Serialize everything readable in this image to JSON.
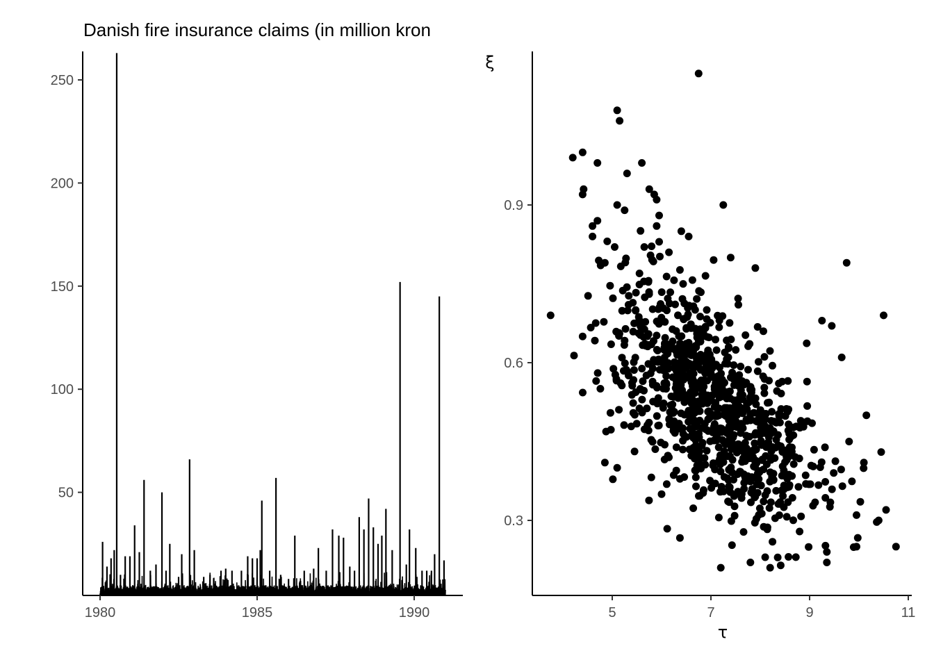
{
  "chart_data": [
    {
      "type": "line",
      "title": "Danish fire insurance claims (in million kron",
      "xlabel": "",
      "ylabel": "",
      "xlim": [
        1979.9,
        1991.6
      ],
      "ylim": [
        0,
        262
      ],
      "x_ticks": [
        "1980",
        "1985",
        "1990"
      ],
      "x_tick_values": [
        1980,
        1985,
        1990
      ],
      "y_ticks": [
        "50",
        "100",
        "150",
        "200",
        "250"
      ],
      "y_tick_values": [
        50,
        100,
        150,
        200,
        250
      ],
      "grid": false,
      "peaks": [
        {
          "x": 1980.08,
          "y": 26
        },
        {
          "x": 1980.22,
          "y": 14
        },
        {
          "x": 1980.35,
          "y": 18
        },
        {
          "x": 1980.45,
          "y": 22
        },
        {
          "x": 1980.53,
          "y": 263
        },
        {
          "x": 1980.65,
          "y": 10
        },
        {
          "x": 1980.8,
          "y": 19
        },
        {
          "x": 1980.95,
          "y": 19
        },
        {
          "x": 1981.1,
          "y": 34
        },
        {
          "x": 1981.25,
          "y": 21
        },
        {
          "x": 1981.4,
          "y": 56
        },
        {
          "x": 1981.6,
          "y": 12
        },
        {
          "x": 1981.78,
          "y": 15
        },
        {
          "x": 1981.97,
          "y": 50
        },
        {
          "x": 1982.1,
          "y": 12
        },
        {
          "x": 1982.22,
          "y": 25
        },
        {
          "x": 1982.5,
          "y": 9
        },
        {
          "x": 1982.6,
          "y": 20
        },
        {
          "x": 1982.85,
          "y": 66
        },
        {
          "x": 1983.0,
          "y": 22
        },
        {
          "x": 1983.3,
          "y": 9
        },
        {
          "x": 1983.5,
          "y": 10
        },
        {
          "x": 1983.85,
          "y": 12
        },
        {
          "x": 1984.0,
          "y": 13
        },
        {
          "x": 1984.2,
          "y": 12
        },
        {
          "x": 1984.5,
          "y": 12
        },
        {
          "x": 1984.7,
          "y": 19
        },
        {
          "x": 1984.85,
          "y": 18
        },
        {
          "x": 1985.0,
          "y": 18
        },
        {
          "x": 1985.1,
          "y": 22
        },
        {
          "x": 1985.15,
          "y": 46
        },
        {
          "x": 1985.4,
          "y": 12
        },
        {
          "x": 1985.6,
          "y": 57
        },
        {
          "x": 1985.75,
          "y": 10
        },
        {
          "x": 1986.0,
          "y": 8
        },
        {
          "x": 1986.2,
          "y": 29
        },
        {
          "x": 1986.5,
          "y": 12
        },
        {
          "x": 1986.8,
          "y": 13
        },
        {
          "x": 1986.95,
          "y": 23
        },
        {
          "x": 1987.2,
          "y": 12
        },
        {
          "x": 1987.4,
          "y": 32
        },
        {
          "x": 1987.6,
          "y": 29
        },
        {
          "x": 1987.75,
          "y": 28
        },
        {
          "x": 1987.95,
          "y": 14
        },
        {
          "x": 1988.1,
          "y": 12
        },
        {
          "x": 1988.25,
          "y": 38
        },
        {
          "x": 1988.4,
          "y": 32
        },
        {
          "x": 1988.55,
          "y": 47
        },
        {
          "x": 1988.7,
          "y": 33
        },
        {
          "x": 1988.85,
          "y": 25
        },
        {
          "x": 1988.97,
          "y": 29
        },
        {
          "x": 1989.1,
          "y": 42
        },
        {
          "x": 1989.3,
          "y": 22
        },
        {
          "x": 1989.55,
          "y": 152
        },
        {
          "x": 1989.75,
          "y": 15
        },
        {
          "x": 1989.85,
          "y": 32
        },
        {
          "x": 1990.05,
          "y": 23
        },
        {
          "x": 1990.25,
          "y": 12
        },
        {
          "x": 1990.4,
          "y": 12
        },
        {
          "x": 1990.55,
          "y": 12
        },
        {
          "x": 1990.65,
          "y": 20
        },
        {
          "x": 1990.8,
          "y": 145
        },
        {
          "x": 1990.95,
          "y": 17
        }
      ]
    },
    {
      "type": "scatter",
      "title": "",
      "xlabel": "τ",
      "ylabel": "ξ",
      "xlim": [
        3.6,
        11.0
      ],
      "ylim": [
        0.16,
        1.2
      ],
      "x_ticks": [
        "5",
        "7",
        "9",
        "11"
      ],
      "x_tick_values": [
        5,
        7,
        9,
        11
      ],
      "y_ticks": [
        "0.3",
        "0.6",
        "0.9"
      ],
      "y_tick_values": [
        0.3,
        0.6,
        0.9
      ],
      "grid": false,
      "points": [
        {
          "x": 6.75,
          "y": 1.15
        },
        {
          "x": 5.1,
          "y": 1.08
        },
        {
          "x": 5.15,
          "y": 1.06
        },
        {
          "x": 4.2,
          "y": 0.99
        },
        {
          "x": 4.4,
          "y": 1.0
        },
        {
          "x": 4.7,
          "y": 0.98
        },
        {
          "x": 5.6,
          "y": 0.98
        },
        {
          "x": 5.3,
          "y": 0.96
        },
        {
          "x": 4.4,
          "y": 0.92
        },
        {
          "x": 4.42,
          "y": 0.93
        },
        {
          "x": 5.75,
          "y": 0.93
        },
        {
          "x": 5.85,
          "y": 0.92
        },
        {
          "x": 5.9,
          "y": 0.91
        },
        {
          "x": 5.1,
          "y": 0.9
        },
        {
          "x": 5.25,
          "y": 0.89
        },
        {
          "x": 7.25,
          "y": 0.9
        },
        {
          "x": 5.95,
          "y": 0.88
        },
        {
          "x": 4.7,
          "y": 0.87
        },
        {
          "x": 4.6,
          "y": 0.86
        },
        {
          "x": 4.6,
          "y": 0.84
        },
        {
          "x": 5.9,
          "y": 0.86
        },
        {
          "x": 6.4,
          "y": 0.85
        },
        {
          "x": 6.55,
          "y": 0.84
        },
        {
          "x": 5.05,
          "y": 0.82
        },
        {
          "x": 5.95,
          "y": 0.83
        },
        {
          "x": 5.65,
          "y": 0.82
        },
        {
          "x": 6.15,
          "y": 0.81
        },
        {
          "x": 7.4,
          "y": 0.8
        },
        {
          "x": 9.75,
          "y": 0.79
        },
        {
          "x": 4.85,
          "y": 0.79
        },
        {
          "x": 7.9,
          "y": 0.78
        },
        {
          "x": 3.75,
          "y": 0.69
        },
        {
          "x": 10.5,
          "y": 0.69
        },
        {
          "x": 9.25,
          "y": 0.68
        },
        {
          "x": 9.45,
          "y": 0.67
        },
        {
          "x": 4.4,
          "y": 0.65
        },
        {
          "x": 9.65,
          "y": 0.61
        },
        {
          "x": 10.15,
          "y": 0.5
        },
        {
          "x": 10.45,
          "y": 0.43
        },
        {
          "x": 10.1,
          "y": 0.41
        },
        {
          "x": 10.75,
          "y": 0.25
        },
        {
          "x": 10.55,
          "y": 0.32
        },
        {
          "x": 10.4,
          "y": 0.3
        },
        {
          "x": 9.95,
          "y": 0.25
        },
        {
          "x": 9.95,
          "y": 0.31
        },
        {
          "x": 9.35,
          "y": 0.22
        },
        {
          "x": 9.35,
          "y": 0.24
        },
        {
          "x": 8.2,
          "y": 0.21
        },
        {
          "x": 8.1,
          "y": 0.23
        },
        {
          "x": 7.2,
          "y": 0.21
        },
        {
          "x": 7.8,
          "y": 0.22
        },
        {
          "x": 4.85,
          "y": 0.41
        },
        {
          "x": 5.1,
          "y": 0.4
        },
        {
          "x": 6.0,
          "y": 0.35
        },
        {
          "x": 9.8,
          "y": 0.45
        }
      ]
    }
  ]
}
